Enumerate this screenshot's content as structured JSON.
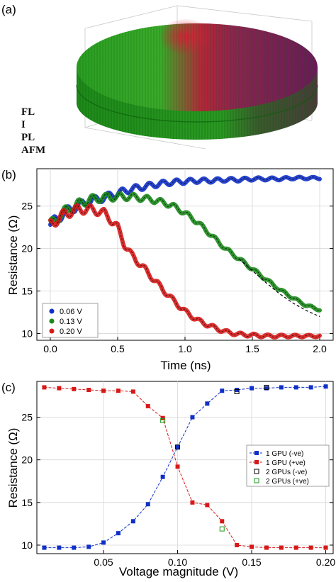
{
  "panel_a": {
    "label": "(a)",
    "layer_labels": [
      "FL",
      "I",
      "PL",
      "AFM"
    ],
    "colors": {
      "green": "#1f9a1f",
      "magenta": "#7a1a5a",
      "red": "#c0203a"
    }
  },
  "chart_data": [
    {
      "type": "line",
      "panel_label": "(b)",
      "xlabel": "Time (ns)",
      "ylabel": "Resistance (Ω)",
      "xlim": [
        -0.1,
        2.1
      ],
      "ylim": [
        9.2,
        29.4
      ],
      "xticks": [
        0.0,
        0.5,
        1.0,
        1.5,
        2.0
      ],
      "xtick_labels": [
        "0.0",
        "0.5",
        "1.0",
        "1.5",
        "2.0"
      ],
      "yticks": [
        10,
        15,
        20,
        25
      ],
      "ytick_labels": [
        "10",
        "15",
        "20",
        "25"
      ],
      "grid": true,
      "legend_placement": "bottom-left",
      "legend": [
        "0.06 V",
        "0.13 V",
        "0.20 V"
      ],
      "series": [
        {
          "name": "0.06 V",
          "color": "#1030c8",
          "x": [
            0.0,
            0.1,
            0.2,
            0.3,
            0.4,
            0.5,
            0.6,
            0.7,
            0.8,
            0.9,
            1.0,
            1.1,
            1.2,
            1.3,
            1.4,
            1.5,
            1.6,
            1.7,
            1.8,
            1.9,
            2.0
          ],
          "y": [
            22.8,
            24.2,
            25.0,
            25.6,
            26.0,
            26.5,
            27.0,
            27.3,
            27.6,
            27.8,
            27.9,
            28.0,
            28.0,
            28.1,
            28.1,
            28.2,
            28.2,
            28.2,
            28.3,
            28.3,
            28.3
          ]
        },
        {
          "name": "0.13 V",
          "color": "#1a8a1a",
          "x": [
            0.0,
            0.1,
            0.2,
            0.3,
            0.4,
            0.5,
            0.6,
            0.7,
            0.8,
            0.9,
            1.0,
            1.1,
            1.2,
            1.3,
            1.4,
            1.5,
            1.6,
            1.7,
            1.8,
            1.9,
            2.0
          ],
          "y": [
            22.8,
            24.3,
            25.2,
            25.8,
            26.0,
            26.1,
            26.1,
            25.9,
            25.6,
            25.1,
            24.2,
            23.0,
            21.5,
            20.0,
            18.8,
            17.6,
            16.4,
            15.2,
            14.2,
            13.3,
            12.8
          ]
        },
        {
          "name": "0.20 V",
          "color": "#d81818",
          "x": [
            0.0,
            0.1,
            0.2,
            0.3,
            0.4,
            0.5,
            0.55,
            0.6,
            0.7,
            0.8,
            0.9,
            1.0,
            1.1,
            1.2,
            1.3,
            1.4,
            1.5,
            1.6,
            1.7,
            1.8,
            1.9,
            2.0
          ],
          "y": [
            22.8,
            24.0,
            24.6,
            24.6,
            24.2,
            22.5,
            20.5,
            19.3,
            17.6,
            15.8,
            14.1,
            12.6,
            11.5,
            10.8,
            10.2,
            9.9,
            9.8,
            9.7,
            9.7,
            9.7,
            9.7,
            9.7
          ]
        }
      ],
      "reference_dashed": {
        "color": "#000000",
        "x": [
          1.4,
          1.5,
          1.6,
          1.7,
          1.8,
          1.9,
          2.0
        ],
        "y": [
          18.8,
          17.4,
          16.0,
          14.7,
          13.6,
          12.7,
          12.0
        ]
      }
    },
    {
      "type": "line",
      "panel_label": "(c)",
      "xlabel": "Voltage magnitude (V)",
      "ylabel": "Resistance (Ω)",
      "xlim": [
        0.005,
        0.205
      ],
      "ylim": [
        9.0,
        29.2
      ],
      "xticks": [
        0.05,
        0.1,
        0.15,
        0.2
      ],
      "xtick_labels": [
        "0.05",
        "0.10",
        "0.15",
        "0.20"
      ],
      "yticks": [
        10,
        15,
        20,
        25
      ],
      "ytick_labels": [
        "10",
        "15",
        "20",
        "25"
      ],
      "grid": true,
      "legend_placement": "right",
      "legend": [
        "1 GPU (-ve)",
        "1 GPU (+ve)",
        "2 GPUs (-ve)",
        "2 GPUs (+ve)"
      ],
      "x": [
        0.01,
        0.02,
        0.03,
        0.04,
        0.05,
        0.06,
        0.07,
        0.08,
        0.09,
        0.1,
        0.11,
        0.12,
        0.13,
        0.14,
        0.15,
        0.16,
        0.17,
        0.18,
        0.19,
        0.2
      ],
      "series": [
        {
          "name": "1 GPU (-ve)",
          "color": "#1030c8",
          "marker": "square-filled",
          "y": [
            9.7,
            9.7,
            9.7,
            9.8,
            10.3,
            11.4,
            12.8,
            14.8,
            18.0,
            21.5,
            25.0,
            26.6,
            28.1,
            28.2,
            28.4,
            28.4,
            28.5,
            28.5,
            28.5,
            28.6
          ]
        },
        {
          "name": "1 GPU (+ve)",
          "color": "#d81818",
          "marker": "square-filled",
          "y": [
            28.5,
            28.4,
            28.3,
            28.2,
            28.1,
            28.1,
            28.0,
            26.3,
            24.9,
            19.2,
            15.0,
            14.7,
            12.8,
            10.0,
            9.8,
            9.7,
            9.7,
            9.7,
            9.7,
            9.7
          ]
        },
        {
          "name": "2 GPUs (-ve)",
          "color": "#000000",
          "marker": "square-open",
          "x": [
            0.1,
            0.14,
            0.16
          ],
          "y": [
            21.5,
            28.0,
            28.5
          ]
        },
        {
          "name": "2 GPUs (+ve)",
          "color": "#1a9a1a",
          "marker": "square-open",
          "x": [
            0.09,
            0.13
          ],
          "y": [
            24.6,
            11.9
          ]
        }
      ]
    }
  ]
}
